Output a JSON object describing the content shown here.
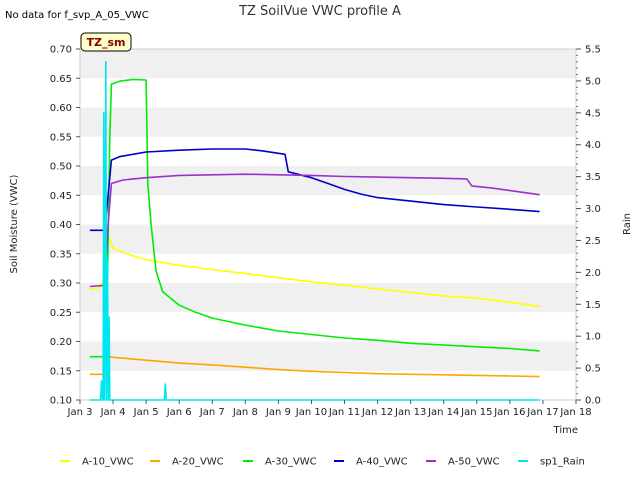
{
  "chart_data": {
    "type": "line",
    "title": "TZ SoilVue VWC profile A",
    "subtitle": "No data for f_svp_A_05_VWC",
    "badge": "TZ_sm",
    "xlabel": "Time",
    "ylabel": "Soil Moisture (VWC)",
    "y2label": "Rain",
    "x_ticks": [
      "Jan 3",
      "Jan 4",
      "Jan 5",
      "Jan 6",
      "Jan 7",
      "Jan 8",
      "Jan 9",
      "Jan 10",
      "Jan 11",
      "Jan 12",
      "Jan 13",
      "Jan 14",
      "Jan 15",
      "Jan 16",
      "Jan 17",
      "Jan 18"
    ],
    "xlim": [
      3,
      18
    ],
    "ylim": [
      0.1,
      0.7
    ],
    "y_ticks": [
      "0.10",
      "0.15",
      "0.20",
      "0.25",
      "0.30",
      "0.35",
      "0.40",
      "0.45",
      "0.50",
      "0.55",
      "0.60",
      "0.65",
      "0.70"
    ],
    "y2lim": [
      0.0,
      5.5
    ],
    "y2_ticks": [
      "0.0",
      "0.5",
      "1.0",
      "1.5",
      "2.0",
      "2.5",
      "3.0",
      "3.5",
      "4.0",
      "4.5",
      "5.0",
      "5.5"
    ],
    "grid": "horizontal bands",
    "legend_position": "bottom",
    "series": [
      {
        "name": "A-10_VWC",
        "color": "#ffff00",
        "axis": "left",
        "points": [
          [
            3.3,
            0.29
          ],
          [
            3.6,
            0.292
          ],
          [
            3.75,
            0.31
          ],
          [
            3.85,
            0.38
          ],
          [
            4.0,
            0.36
          ],
          [
            4.5,
            0.348
          ],
          [
            5.0,
            0.34
          ],
          [
            6.0,
            0.33
          ],
          [
            7.0,
            0.323
          ],
          [
            8.0,
            0.316
          ],
          [
            9.0,
            0.309
          ],
          [
            10.0,
            0.302
          ],
          [
            11.0,
            0.296
          ],
          [
            12.0,
            0.29
          ],
          [
            13.0,
            0.284
          ],
          [
            14.0,
            0.278
          ],
          [
            15.0,
            0.274
          ],
          [
            16.0,
            0.267
          ],
          [
            16.9,
            0.26
          ]
        ]
      },
      {
        "name": "A-20_VWC",
        "color": "#ffa500",
        "axis": "left",
        "points": [
          [
            3.3,
            0.144
          ],
          [
            3.7,
            0.144
          ],
          [
            3.75,
            0.165
          ],
          [
            3.85,
            0.175
          ],
          [
            4.0,
            0.173
          ],
          [
            5.0,
            0.168
          ],
          [
            6.0,
            0.163
          ],
          [
            7.0,
            0.16
          ],
          [
            8.0,
            0.156
          ],
          [
            9.0,
            0.152
          ],
          [
            10.0,
            0.149
          ],
          [
            11.0,
            0.147
          ],
          [
            12.0,
            0.145
          ],
          [
            13.0,
            0.144
          ],
          [
            14.0,
            0.143
          ],
          [
            15.0,
            0.142
          ],
          [
            16.0,
            0.141
          ],
          [
            16.9,
            0.14
          ]
        ]
      },
      {
        "name": "A-30_VWC",
        "color": "#00ee00",
        "axis": "left",
        "points": [
          [
            3.3,
            0.174
          ],
          [
            3.7,
            0.174
          ],
          [
            3.8,
            0.2
          ],
          [
            3.9,
            0.55
          ],
          [
            3.95,
            0.64
          ],
          [
            4.2,
            0.645
          ],
          [
            4.6,
            0.648
          ],
          [
            5.0,
            0.647
          ],
          [
            5.05,
            0.47
          ],
          [
            5.15,
            0.4
          ],
          [
            5.3,
            0.32
          ],
          [
            5.5,
            0.285
          ],
          [
            6.0,
            0.262
          ],
          [
            6.5,
            0.25
          ],
          [
            7.0,
            0.24
          ],
          [
            8.0,
            0.228
          ],
          [
            9.0,
            0.218
          ],
          [
            10.0,
            0.212
          ],
          [
            11.0,
            0.206
          ],
          [
            12.0,
            0.202
          ],
          [
            13.0,
            0.197
          ],
          [
            14.0,
            0.194
          ],
          [
            15.0,
            0.191
          ],
          [
            16.0,
            0.188
          ],
          [
            16.9,
            0.184
          ]
        ]
      },
      {
        "name": "A-40_VWC",
        "color": "#0000cc",
        "axis": "left",
        "points": [
          [
            3.3,
            0.39
          ],
          [
            3.75,
            0.39
          ],
          [
            3.85,
            0.45
          ],
          [
            3.95,
            0.51
          ],
          [
            4.2,
            0.516
          ],
          [
            4.6,
            0.52
          ],
          [
            5.0,
            0.524
          ],
          [
            6.0,
            0.527
          ],
          [
            7.0,
            0.529
          ],
          [
            8.0,
            0.529
          ],
          [
            8.5,
            0.526
          ],
          [
            9.2,
            0.52
          ],
          [
            9.3,
            0.49
          ],
          [
            10.0,
            0.48
          ],
          [
            10.5,
            0.47
          ],
          [
            11.0,
            0.46
          ],
          [
            11.5,
            0.452
          ],
          [
            12.0,
            0.446
          ],
          [
            13.0,
            0.44
          ],
          [
            14.0,
            0.434
          ],
          [
            15.0,
            0.43
          ],
          [
            16.0,
            0.426
          ],
          [
            16.9,
            0.422
          ]
        ]
      },
      {
        "name": "A-50_VWC",
        "color": "#9932cc",
        "axis": "left",
        "points": [
          [
            3.3,
            0.294
          ],
          [
            3.75,
            0.296
          ],
          [
            3.85,
            0.4
          ],
          [
            3.95,
            0.47
          ],
          [
            4.3,
            0.476
          ],
          [
            5.0,
            0.48
          ],
          [
            6.0,
            0.484
          ],
          [
            7.0,
            0.485
          ],
          [
            8.0,
            0.486
          ],
          [
            9.0,
            0.485
          ],
          [
            10.0,
            0.484
          ],
          [
            11.0,
            0.482
          ],
          [
            12.0,
            0.481
          ],
          [
            13.0,
            0.48
          ],
          [
            14.0,
            0.479
          ],
          [
            14.7,
            0.478
          ],
          [
            14.85,
            0.466
          ],
          [
            15.5,
            0.462
          ],
          [
            16.0,
            0.458
          ],
          [
            16.9,
            0.451
          ]
        ]
      },
      {
        "name": "sp1_Rain",
        "color": "#00e5ee",
        "axis": "right",
        "points": [
          [
            3.3,
            0.0
          ],
          [
            3.62,
            0.0
          ],
          [
            3.65,
            0.3
          ],
          [
            3.68,
            0.0
          ],
          [
            3.7,
            0.0
          ],
          [
            3.72,
            4.5
          ],
          [
            3.74,
            0.0
          ],
          [
            3.76,
            1.0
          ],
          [
            3.78,
            5.3
          ],
          [
            3.8,
            0.0
          ],
          [
            3.83,
            2.2
          ],
          [
            3.86,
            0.0
          ],
          [
            3.88,
            1.3
          ],
          [
            3.9,
            0.0
          ],
          [
            5.55,
            0.0
          ],
          [
            5.58,
            0.25
          ],
          [
            5.61,
            0.0
          ],
          [
            16.9,
            0.0
          ]
        ]
      }
    ]
  }
}
